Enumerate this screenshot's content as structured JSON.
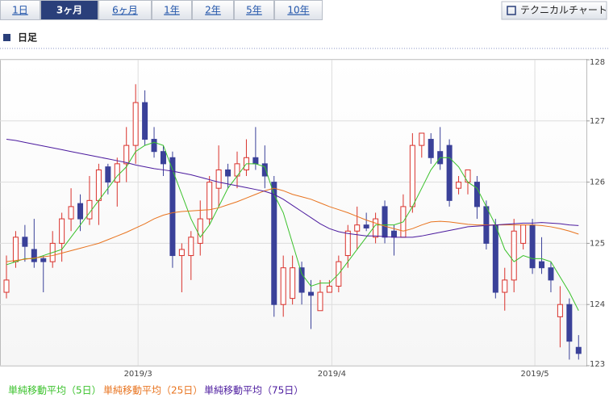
{
  "tabs": [
    "1日",
    "3ヶ月",
    "6ヶ月",
    "1年",
    "2年",
    "5年",
    "10年"
  ],
  "selected_tab": 1,
  "technical_button": "テクニカルチャート",
  "section_title": "日足",
  "chart_data": {
    "type": "candlestick",
    "categories": [
      null,
      null,
      null,
      null,
      null,
      null,
      null,
      null,
      null,
      null,
      null,
      null,
      null,
      null,
      "2019/3",
      null,
      null,
      null,
      null,
      null,
      null,
      null,
      null,
      null,
      null,
      null,
      null,
      null,
      null,
      null,
      null,
      null,
      null,
      null,
      null,
      "2019/4",
      null,
      null,
      null,
      null,
      null,
      null,
      null,
      null,
      null,
      null,
      null,
      null,
      null,
      null,
      null,
      null,
      null,
      null,
      null,
      null,
      null,
      "2019/5",
      null,
      null,
      null,
      null,
      null
    ],
    "open": [
      124.2,
      124.7,
      125.1,
      124.9,
      124.75,
      124.7,
      125.0,
      125.4,
      125.65,
      125.4,
      125.7,
      126.25,
      126.0,
      126.3,
      126.6,
      127.3,
      126.7,
      126.5,
      126.4,
      124.8,
      124.8,
      125.0,
      125.4,
      125.9,
      126.2,
      126.1,
      126.2,
      126.4,
      126.3,
      126.0,
      124.0,
      124.1,
      124.6,
      124.2,
      123.9,
      124.2,
      124.3,
      124.8,
      125.2,
      125.3,
      125.1,
      125.6,
      125.2,
      125.1,
      125.6,
      126.6,
      126.7,
      126.5,
      126.6,
      125.9,
      126.0,
      126.0,
      125.6,
      125.3,
      124.2,
      124.4,
      125.0,
      125.3,
      124.7,
      124.6,
      123.8,
      124.0,
      123.3
    ],
    "high": [
      124.8,
      125.2,
      125.3,
      125.4,
      124.8,
      125.2,
      125.5,
      125.9,
      125.8,
      126.1,
      126.3,
      126.3,
      126.4,
      126.9,
      127.6,
      127.5,
      126.9,
      126.6,
      126.5,
      125.0,
      125.2,
      125.7,
      126.1,
      126.6,
      126.3,
      126.5,
      126.7,
      126.9,
      126.6,
      126.1,
      124.8,
      124.8,
      124.7,
      124.4,
      124.4,
      124.4,
      124.8,
      125.3,
      125.6,
      125.5,
      125.5,
      125.7,
      125.3,
      125.8,
      126.8,
      126.8,
      126.8,
      126.9,
      126.7,
      126.1,
      126.2,
      126.1,
      125.7,
      125.4,
      124.6,
      125.4,
      125.3,
      125.4,
      125.1,
      124.7,
      124.3,
      124.1,
      123.5
    ],
    "low": [
      124.1,
      124.6,
      124.7,
      124.6,
      124.2,
      124.6,
      124.7,
      125.2,
      125.2,
      125.3,
      125.3,
      125.8,
      125.6,
      126.0,
      126.3,
      126.6,
      126.4,
      126.1,
      124.6,
      124.2,
      124.4,
      124.8,
      125.3,
      125.6,
      125.9,
      125.9,
      126.1,
      126.2,
      125.9,
      123.8,
      123.8,
      124.0,
      124.0,
      123.6,
      123.9,
      124.2,
      124.2,
      124.6,
      124.9,
      125.2,
      125.0,
      125.0,
      124.8,
      125.1,
      125.5,
      126.4,
      126.3,
      126.2,
      125.6,
      125.8,
      125.8,
      125.4,
      124.9,
      124.1,
      123.9,
      124.2,
      124.9,
      124.5,
      124.5,
      124.2,
      123.3,
      123.1,
      123.1
    ],
    "close": [
      124.4,
      125.1,
      124.95,
      124.7,
      124.7,
      125.0,
      125.4,
      125.6,
      125.4,
      125.7,
      126.2,
      126.0,
      126.3,
      126.6,
      127.3,
      126.7,
      126.5,
      126.3,
      124.8,
      124.9,
      125.1,
      125.4,
      126.0,
      126.2,
      126.1,
      126.3,
      126.4,
      126.3,
      126.1,
      124.0,
      124.6,
      124.6,
      124.2,
      124.15,
      124.2,
      124.3,
      124.7,
      125.2,
      125.3,
      125.25,
      125.4,
      125.1,
      125.1,
      125.6,
      126.6,
      126.8,
      126.4,
      126.3,
      125.7,
      126.0,
      126.2,
      125.6,
      125.0,
      124.2,
      124.4,
      125.2,
      125.3,
      124.6,
      124.6,
      124.4,
      124.0,
      123.4,
      123.2
    ],
    "up_color": "#d9312b",
    "down_color": "#3a4199",
    "series": [
      {
        "name": "単純移動平均（5日）",
        "color": "#39c12a",
        "values": [
          124.65,
          124.7,
          124.75,
          124.75,
          124.8,
          124.85,
          124.9,
          125.1,
          125.3,
          125.5,
          125.7,
          125.9,
          126.1,
          126.25,
          126.5,
          126.6,
          126.65,
          126.6,
          126.2,
          125.8,
          125.4,
          125.1,
          125.3,
          125.6,
          125.9,
          126.1,
          126.3,
          126.3,
          126.25,
          125.8,
          125.5,
          125.0,
          124.5,
          124.3,
          124.35,
          124.35,
          124.5,
          124.7,
          124.9,
          125.1,
          125.3,
          125.3,
          125.3,
          125.35,
          125.6,
          125.9,
          126.2,
          126.4,
          126.4,
          126.25,
          126.0,
          125.9,
          125.6,
          125.3,
          124.9,
          124.7,
          124.8,
          124.75,
          124.75,
          124.7,
          124.45,
          124.2,
          123.9
        ]
      },
      {
        "name": "単純移動平均（25日）",
        "color": "#e8731e",
        "values": [
          124.7,
          124.72,
          124.74,
          124.76,
          124.78,
          124.8,
          124.84,
          124.88,
          124.92,
          124.96,
          125.0,
          125.06,
          125.12,
          125.18,
          125.25,
          125.32,
          125.4,
          125.46,
          125.5,
          125.52,
          125.53,
          125.54,
          125.55,
          125.58,
          125.63,
          125.68,
          125.74,
          125.8,
          125.86,
          125.9,
          125.86,
          125.8,
          125.76,
          125.72,
          125.66,
          125.6,
          125.55,
          125.5,
          125.44,
          125.38,
          125.33,
          125.28,
          125.24,
          125.2,
          125.24,
          125.3,
          125.35,
          125.36,
          125.35,
          125.33,
          125.31,
          125.3,
          125.3,
          125.3,
          125.3,
          125.3,
          125.3,
          125.3,
          125.29,
          125.27,
          125.24,
          125.2,
          125.15
        ]
      },
      {
        "name": "単純移動平均（75日）",
        "color": "#4b1a9e",
        "values": [
          126.7,
          126.68,
          126.65,
          126.62,
          126.59,
          126.56,
          126.53,
          126.5,
          126.47,
          126.44,
          126.41,
          126.38,
          126.35,
          126.32,
          126.28,
          126.25,
          126.22,
          126.2,
          126.18,
          126.15,
          126.12,
          126.08,
          126.04,
          126.0,
          125.97,
          125.94,
          125.91,
          125.88,
          125.85,
          125.8,
          125.72,
          125.62,
          125.52,
          125.42,
          125.32,
          125.24,
          125.19,
          125.16,
          125.14,
          125.12,
          125.12,
          125.11,
          125.1,
          125.1,
          125.1,
          125.12,
          125.15,
          125.18,
          125.21,
          125.24,
          125.27,
          125.28,
          125.29,
          125.3,
          125.31,
          125.32,
          125.33,
          125.33,
          125.34,
          125.33,
          125.32,
          125.3,
          125.29
        ]
      }
    ],
    "ylim": [
      123,
      128
    ],
    "yticks": [
      123,
      124,
      125,
      126,
      127,
      128
    ],
    "grid": true
  }
}
